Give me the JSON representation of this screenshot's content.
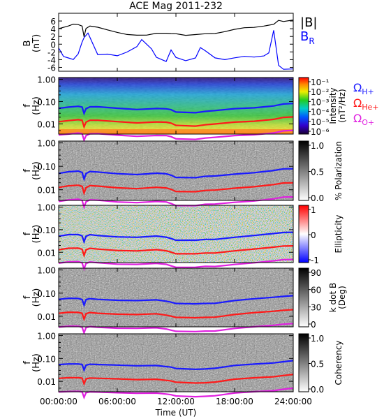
{
  "chart_data": [
    {
      "type": "line",
      "title": "ACE Mag 2011-232",
      "ylabel": "B (nT)",
      "ylim": [
        -7,
        8
      ],
      "yticks": [
        "6",
        "4",
        "2",
        "0",
        "-2",
        "-4",
        "-6"
      ],
      "legend": [
        "|B|",
        "B_R"
      ],
      "series": [
        {
          "name": "|B|",
          "color": "#000000",
          "x": [
            0,
            1,
            1.5,
            2,
            2.4,
            2.6,
            2.8,
            3.2,
            4,
            5,
            6,
            7,
            8,
            9,
            10,
            11,
            11.5,
            12,
            13,
            14,
            15,
            16,
            17,
            18,
            19,
            20,
            21,
            22,
            22.5,
            23,
            24
          ],
          "y": [
            4,
            4.5,
            4.8,
            4.6,
            4.2,
            1.5,
            3.8,
            4.6,
            4.5,
            4.0,
            3.5,
            3.0,
            2.8,
            2.7,
            3.0,
            2.8,
            2.5,
            2.3,
            1.8,
            2.0,
            2.3,
            2.5,
            3.2,
            4.0,
            4.6,
            4.8,
            5.2,
            5.6,
            6.5,
            6.0,
            6.2
          ]
        },
        {
          "name": "B_R",
          "color": "#0000ff",
          "x": [
            0,
            0.5,
            1,
            1.5,
            2,
            2.4,
            2.6,
            3,
            3.5,
            4,
            5,
            6,
            7,
            8,
            8.5,
            9,
            9.5,
            10,
            11,
            11.5,
            12,
            13,
            14,
            14.5,
            15,
            16,
            17,
            18,
            19,
            20,
            21,
            21.5,
            22,
            22.5,
            23,
            24
          ],
          "y": [
            -1,
            -3,
            -3.2,
            -3.5,
            -2,
            1,
            2,
            3,
            0,
            -3,
            -3,
            -3.5,
            -2.5,
            -1,
            1,
            0,
            -1,
            -3,
            -4,
            -1,
            -3,
            -4,
            -3.5,
            -1,
            -2,
            -4,
            -4.5,
            -4,
            -3.5,
            -3.5,
            -3,
            -2,
            4,
            -5,
            -6,
            -6
          ]
        }
      ]
    },
    {
      "type": "heatmap",
      "ylabel": "f (Hz)",
      "yscale": "log",
      "yticks": [
        "1.00",
        "0.10",
        "0.01"
      ],
      "colorbar": {
        "label": "Intensity (nT²/Hz)",
        "ticks": [
          "10⁻¹",
          "10⁻²",
          "10⁻³",
          "10⁻⁴",
          "10⁻⁵",
          "10⁻⁶"
        ],
        "scale": "rainbow"
      },
      "legend": [
        "ΩH+",
        "ΩHe+",
        "ΩO+"
      ]
    },
    {
      "type": "heatmap",
      "ylabel": "f (Hz)",
      "yscale": "log",
      "yticks": [
        "1.00",
        "0.10",
        "0.01"
      ],
      "colorbar": {
        "label": "% Polarization",
        "ticks": [
          "1.0",
          "0.5",
          "0.0"
        ],
        "scale": "gray"
      }
    },
    {
      "type": "heatmap",
      "ylabel": "f (Hz)",
      "yscale": "log",
      "yticks": [
        "1.00",
        "0.10",
        "0.01"
      ],
      "colorbar": {
        "label": "Ellipticity",
        "ticks": [
          "1",
          "0",
          "-1"
        ],
        "scale": "blue-white-red"
      }
    },
    {
      "type": "heatmap",
      "ylabel": "f (Hz)",
      "yscale": "log",
      "yticks": [
        "1.00",
        "0.10",
        "0.01"
      ],
      "colorbar": {
        "label": "k dot B (Deg)",
        "ticks": [
          "90",
          "60",
          "30",
          "0"
        ],
        "scale": "gray"
      }
    },
    {
      "type": "heatmap",
      "ylabel": "f (Hz)",
      "yscale": "log",
      "yticks": [
        "1.00",
        "0.10",
        "0.01"
      ],
      "colorbar": {
        "label": "Coherency",
        "ticks": [
          "1.0",
          "0.5",
          "0.0"
        ],
        "scale": "gray"
      },
      "xlabel": "Time (UT)",
      "xticks": [
        "00:00:00",
        "06:00:00",
        "12:00:00",
        "18:00:00",
        "24:00:00"
      ]
    }
  ],
  "gyro_lines": {
    "hours": [
      0,
      1,
      2,
      2.4,
      2.6,
      2.8,
      3.2,
      4,
      6,
      8,
      10,
      11,
      11.5,
      12,
      14,
      15,
      16,
      18,
      20,
      22,
      23,
      24
    ],
    "H+": [
      0.052,
      0.058,
      0.06,
      0.055,
      0.03,
      0.05,
      0.058,
      0.056,
      0.05,
      0.046,
      0.05,
      0.046,
      0.042,
      0.035,
      0.033,
      0.036,
      0.038,
      0.048,
      0.055,
      0.065,
      0.075,
      0.08
    ],
    "He+": [
      0.013,
      0.0145,
      0.015,
      0.014,
      0.0075,
      0.0125,
      0.0145,
      0.014,
      0.0125,
      0.0115,
      0.0125,
      0.0115,
      0.0105,
      0.0088,
      0.0083,
      0.009,
      0.0095,
      0.012,
      0.0138,
      0.0162,
      0.0188,
      0.02
    ],
    "O+": [
      0.0033,
      0.0036,
      0.0038,
      0.0035,
      0.0019,
      0.0031,
      0.0036,
      0.0035,
      0.0031,
      0.0029,
      0.0031,
      0.0029,
      0.0026,
      0.0022,
      0.0021,
      0.0023,
      0.0024,
      0.003,
      0.0034,
      0.004,
      0.0047,
      0.005
    ]
  },
  "colors": {
    "H+": "#1a1aff",
    "He+": "#ff1a1a",
    "O+": "#e020e0",
    "B_R": "#0000ff",
    "|B|": "#000000"
  }
}
